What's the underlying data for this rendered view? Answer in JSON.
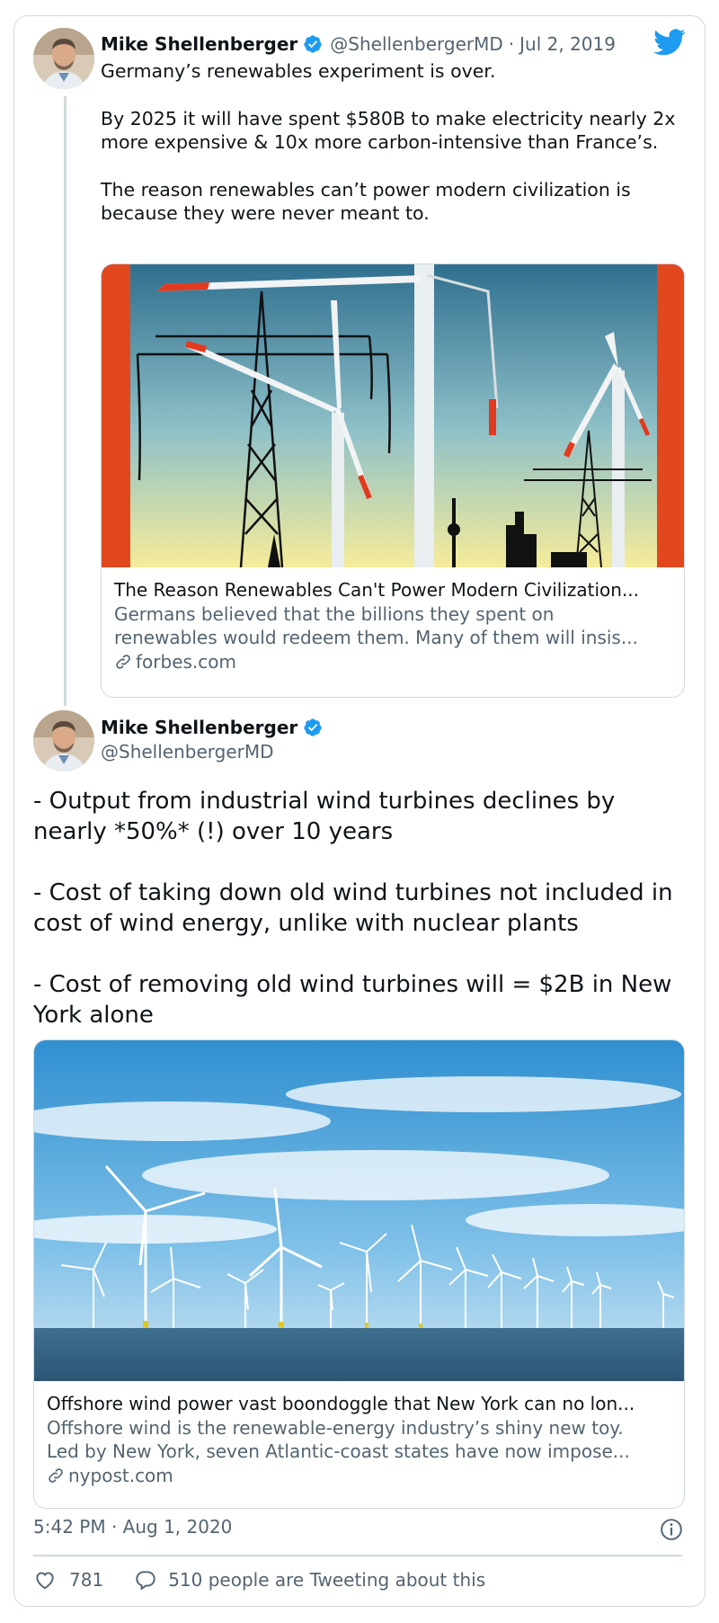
{
  "tweet1": {
    "author_name": "Mike Shellenberger",
    "handle": "@ShellenbergerMD",
    "separator": "·",
    "date": "Jul 2, 2019",
    "paragraphs": [
      "Germany’s renewables experiment is over.",
      "By 2025 it will have spent $580B to make electricity nearly 2x more expensive & 10x more carbon-intensive than France’s.",
      "The reason renewables can’t power modern civilization is because they were never meant to."
    ],
    "link_card": {
      "title": "The Reason Renewables Can't Power Modern Civilization...",
      "desc_lines": [
        "Germans believed that the billions they spent on",
        "renewables would redeem them. Many of them will insis..."
      ],
      "domain": "forbes.com",
      "image_icon": "wind-turbines-pylons-illustration"
    }
  },
  "tweet2": {
    "author_name": "Mike Shellenberger",
    "handle": "@ShellenbergerMD",
    "paragraphs": [
      "- Output from industrial wind turbines declines by nearly *50%* (!) over 10 years",
      "- Cost of taking down old wind turbines not included in cost of wind energy, unlike with nuclear plants",
      "- Cost of removing old wind turbines will = $2B in New York alone"
    ],
    "link_card": {
      "title": "Offshore wind power vast boondoggle that New York can no lon...",
      "desc_lines": [
        "Offshore wind is the renewable-energy industry’s shiny new toy.",
        "Led by New York, seven Atlantic-coast states have now impose..."
      ],
      "domain": "nypost.com",
      "image_icon": "offshore-wind-farm-photo"
    },
    "timestamp": "5:42 PM · Aug 1, 2020",
    "likes": "781",
    "tweeting_about": "510 people are Tweeting about this"
  },
  "colors": {
    "verified": "#1d9bf0",
    "twitter_blue": "#1d9bf0",
    "text": "#0f1419",
    "muted": "#536471",
    "border": "#cfd9de"
  }
}
